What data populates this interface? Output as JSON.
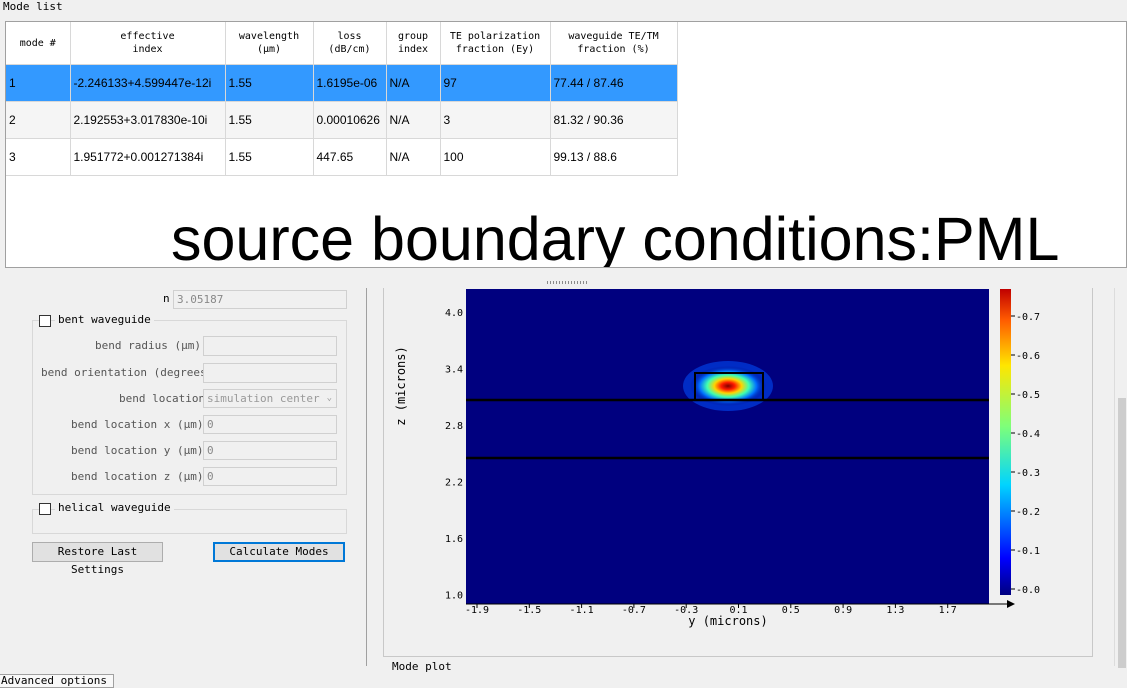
{
  "mode_list": {
    "title": "Mode list",
    "columns": [
      "mode #",
      "effective\nindex",
      "wavelength\n(µm)",
      "loss\n(dB/cm)",
      "group\nindex",
      "TE polarization\nfraction (Ey)",
      "waveguide TE/TM\nfraction (%)"
    ],
    "rows": [
      [
        "1",
        "-2.246133+4.599447e-12i",
        "1.55",
        "1.6195e-06",
        "N/A",
        "97",
        "77.44 / 87.46"
      ],
      [
        "2",
        "2.192553+3.017830e-10i",
        "1.55",
        "0.00010626",
        "N/A",
        "3",
        "81.32 / 90.36"
      ],
      [
        "3",
        "1.951772+0.001271384i",
        "1.55",
        "447.65",
        "N/A",
        "100",
        "99.13 / 88.6"
      ]
    ],
    "selected_row": 0
  },
  "overlay_text": "source boundary conditions:PML",
  "settings": {
    "n_label": "n",
    "n_value": "3.05187",
    "bent_waveguide": {
      "label": "bent waveguide",
      "checked": false,
      "bend_radius_label": "bend radius (µm)",
      "bend_orientation_label": "bend orientation (degrees)",
      "bend_location_label": "bend location",
      "bend_location_value": "simulation center",
      "bend_x_label": "bend location x (µm)",
      "bend_x_value": "0",
      "bend_y_label": "bend location y (µm)",
      "bend_y_value": "0",
      "bend_z_label": "bend location z (µm)",
      "bend_z_value": "0"
    },
    "helical_waveguide": {
      "label": "helical waveguide",
      "checked": false
    },
    "restore_button": "Restore Last Settings",
    "calculate_button": "Calculate Modes"
  },
  "plot": {
    "xlabel": "y (microns)",
    "ylabel": "z (microns)",
    "xticks": [
      "-1.9",
      "-1.5",
      "-1.1",
      "-0.7",
      "-0.3",
      "0.1",
      "0.5",
      "0.9",
      "1.3",
      "1.7"
    ],
    "yticks": [
      "4.0",
      "3.4",
      "2.8",
      "2.2",
      "1.6",
      "1.0"
    ],
    "colorbar_ticks": [
      "0.7",
      "0.6",
      "0.5",
      "0.4",
      "0.3",
      "0.2",
      "0.1",
      "0.0"
    ],
    "background_color": "#00007f"
  },
  "bottom": {
    "advanced_tab": "Advanced options",
    "label": "Mode plot"
  }
}
